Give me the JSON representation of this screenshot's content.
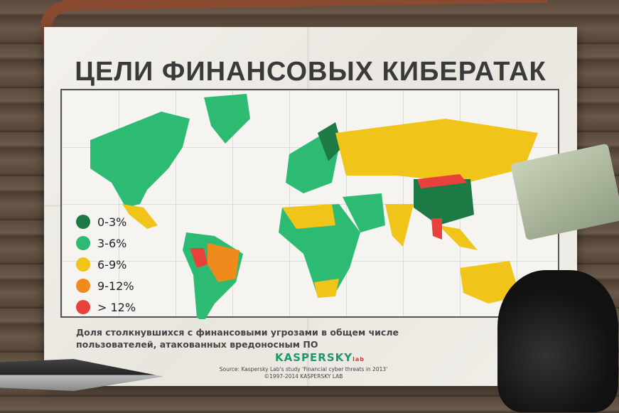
{
  "title": "ЦЕЛИ ФИНАНСОВЫХ КИБЕРАТАК",
  "legend": [
    {
      "label": "0-3%",
      "color": "#1e7a45"
    },
    {
      "label": "3-6%",
      "color": "#2dbb73"
    },
    {
      "label": "6-9%",
      "color": "#f0c419"
    },
    {
      "label": "9-12%",
      "color": "#f08a1c"
    },
    {
      "label": "> 12%",
      "color": "#e8413c"
    }
  ],
  "caption": {
    "line1": "Доля столкнувшихся с финансовыми угрозами в общем числе",
    "line2": "пользователей, атакованных вредоносным ПО"
  },
  "logo": {
    "main": "KASPERSKY",
    "sub": "lab"
  },
  "source": "Source: Kaspersky Lab's study 'Financial cyber threats in 2013'",
  "copyright": "©1997-2014 KASPERSKY LAB"
}
